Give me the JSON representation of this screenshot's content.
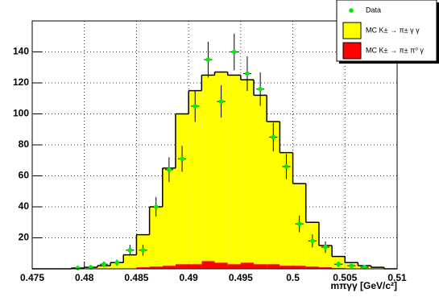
{
  "chart_data": {
    "type": "histogram",
    "xlabel": "mπγγ [GeV/c²]",
    "bins": [
      0.475,
      0.47625,
      0.4775,
      0.47875,
      0.48,
      0.48125,
      0.4825,
      0.48375,
      0.485,
      0.48625,
      0.4875,
      0.48875,
      0.49,
      0.49125,
      0.4925,
      0.49375,
      0.495,
      0.49625,
      0.4975,
      0.49875,
      0.5,
      0.50125,
      0.5025,
      0.50375,
      0.505,
      0.50625,
      0.5075,
      0.50875,
      0.51
    ],
    "series": [
      {
        "name": "Data",
        "color": "#00ee00",
        "values": [
          null,
          null,
          null,
          0.5,
          1,
          3,
          4,
          12,
          12,
          40,
          64,
          71,
          105,
          135,
          108,
          140,
          126,
          116,
          85,
          66,
          29,
          18,
          14,
          3,
          2,
          1,
          null,
          null
        ],
        "errors": [
          null,
          null,
          null,
          0.7,
          1,
          1.7,
          2,
          3.5,
          3.5,
          6.3,
          8,
          8.4,
          10.2,
          11.6,
          10.4,
          11.8,
          11.2,
          10.8,
          9.2,
          8.1,
          5.4,
          4.2,
          3.7,
          1.7,
          1.4,
          1,
          null,
          null
        ]
      },
      {
        "name": "MC K± → π± γ γ",
        "color": "#ffff00",
        "values": [
          0,
          0,
          0,
          0.5,
          1,
          2,
          4,
          9,
          21,
          38.5,
          63,
          97,
          112,
          120,
          123,
          122,
          118,
          109,
          92,
          73,
          53,
          28.5,
          14,
          7.5,
          4,
          2,
          1,
          0
        ]
      },
      {
        "name": "MC K± → π± π⁰ γ",
        "color": "#ff0000",
        "values": [
          0,
          0,
          0,
          0,
          0,
          0,
          0,
          0,
          1,
          1.5,
          2,
          3,
          3,
          5,
          4,
          3,
          4,
          3,
          3,
          2,
          2,
          1.5,
          1,
          0.5,
          0,
          0,
          0,
          0
        ]
      }
    ],
    "xlim": [
      0.475,
      0.51
    ],
    "xticks": [
      0.475,
      0.48,
      0.485,
      0.49,
      0.495,
      0.5,
      0.505,
      0.51
    ],
    "ylim": [
      0,
      160
    ],
    "yticks": [
      20,
      40,
      60,
      80,
      100,
      120,
      140
    ],
    "grid": true
  }
}
